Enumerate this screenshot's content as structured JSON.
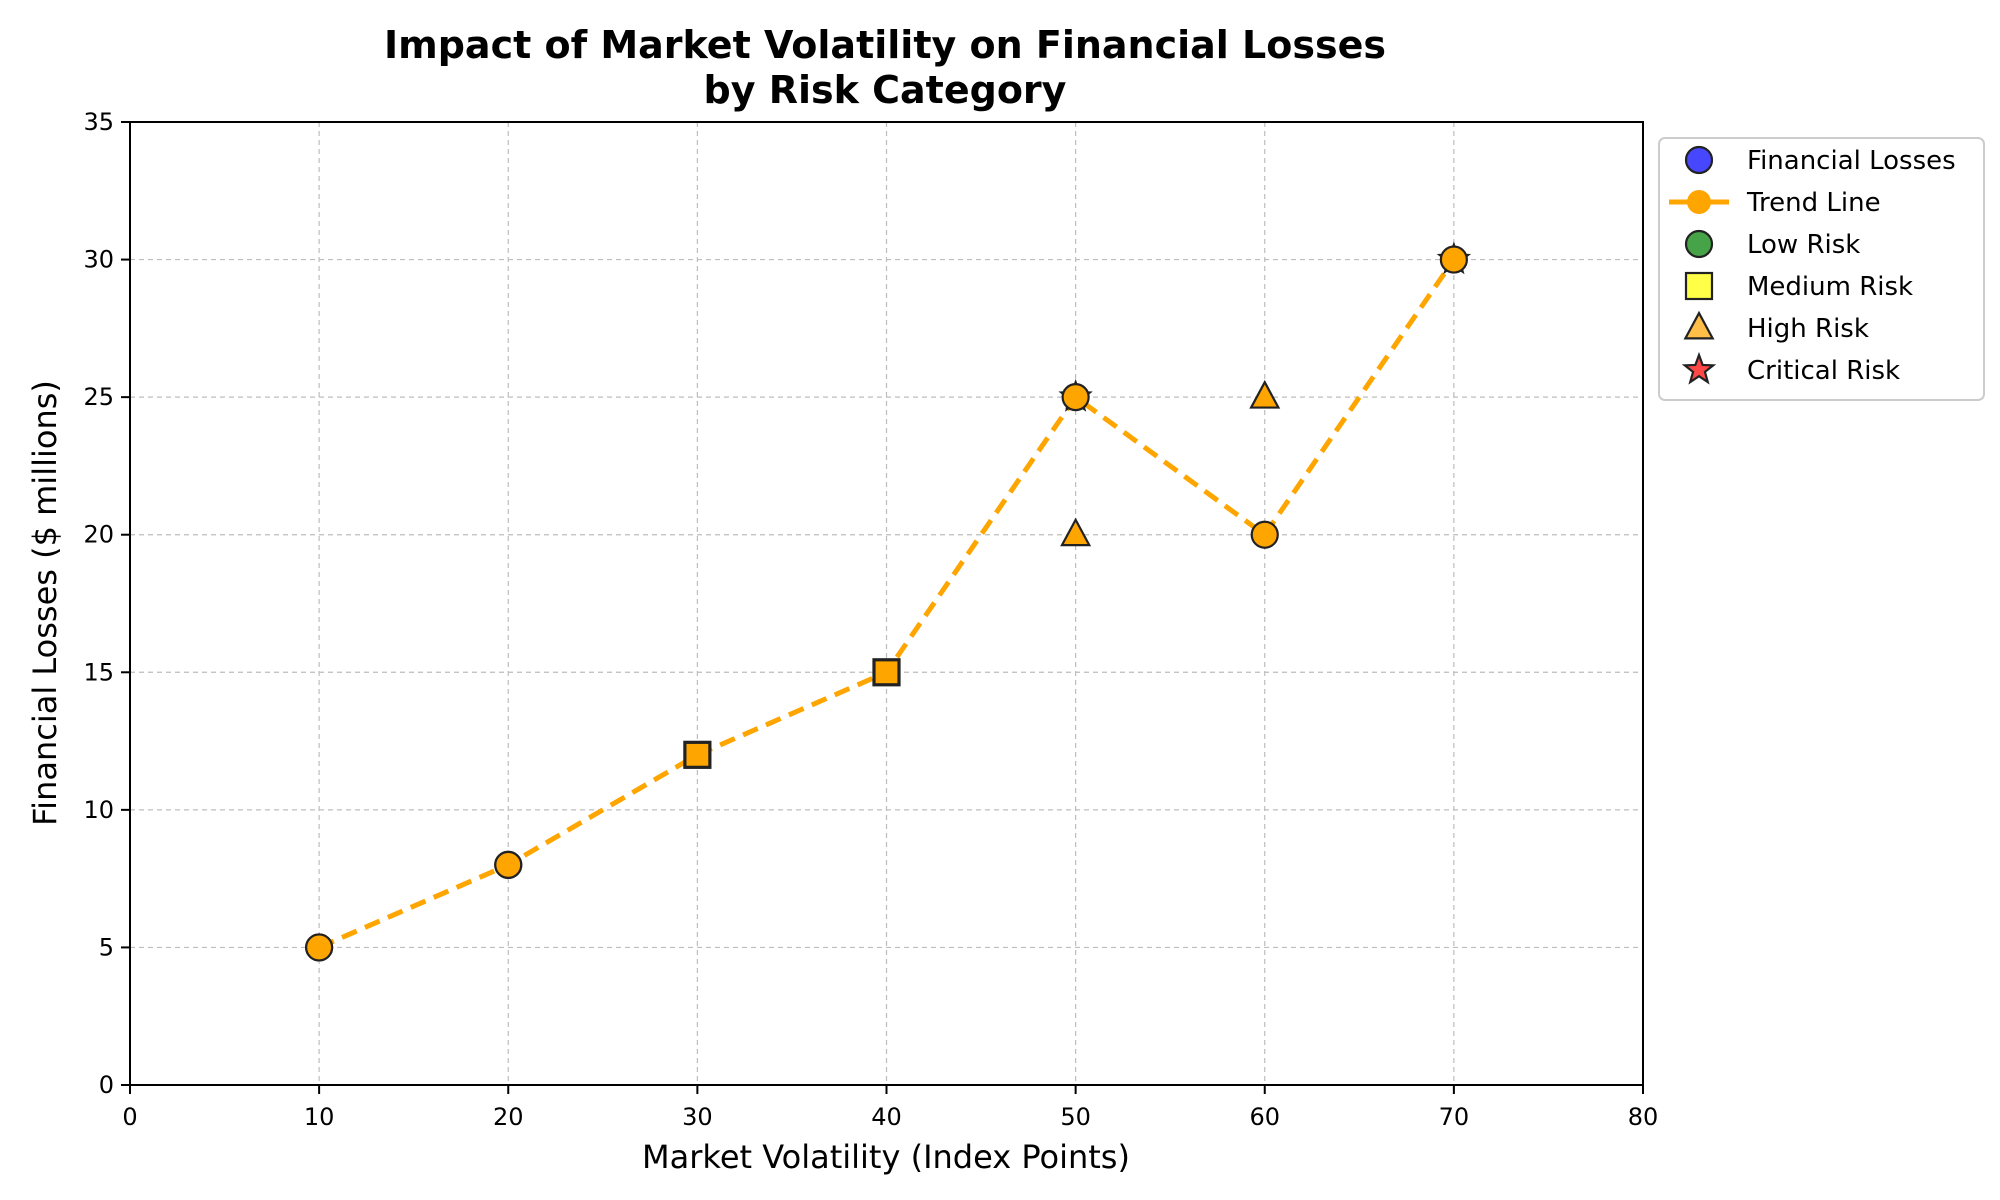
{
  "chart_data": {
    "type": "scatter",
    "title_line1": "Impact of Market Volatility on Financial Losses",
    "title_line2": "by Risk Category",
    "xlabel": "Market Volatility (Index Points)",
    "ylabel": "Financial Losses ($ millions)",
    "xlim": [
      0,
      80
    ],
    "ylim": [
      0,
      35
    ],
    "xticks": [
      0,
      10,
      20,
      30,
      40,
      50,
      60,
      70,
      80
    ],
    "yticks": [
      0,
      5,
      10,
      15,
      20,
      25,
      30,
      35
    ],
    "grid": true,
    "legend_position": "outside-upper-right",
    "series": [
      {
        "name": "Financial Losses",
        "marker": "circle",
        "color": "#0000ff",
        "points": []
      },
      {
        "name": "Trend Line",
        "marker": "circle",
        "line": "dashed",
        "color": "#ffa500",
        "points": [
          [
            10,
            5
          ],
          [
            20,
            8
          ],
          [
            30,
            12
          ],
          [
            40,
            15
          ],
          [
            50,
            25
          ],
          [
            60,
            20
          ],
          [
            70,
            30
          ]
        ]
      },
      {
        "name": "Low Risk",
        "marker": "circle",
        "color": "#008000",
        "points": [
          [
            10,
            5
          ],
          [
            20,
            8
          ]
        ]
      },
      {
        "name": "Medium Risk",
        "marker": "square",
        "color": "#ffff00",
        "points": [
          [
            30,
            12
          ],
          [
            40,
            15
          ]
        ]
      },
      {
        "name": "High Risk",
        "marker": "triangle",
        "color": "#ffa500",
        "points": [
          [
            50,
            20
          ],
          [
            60,
            25
          ]
        ]
      },
      {
        "name": "Critical Risk",
        "marker": "star",
        "color": "#ff0000",
        "points": [
          [
            50,
            25
          ],
          [
            70,
            30
          ]
        ]
      }
    ]
  }
}
